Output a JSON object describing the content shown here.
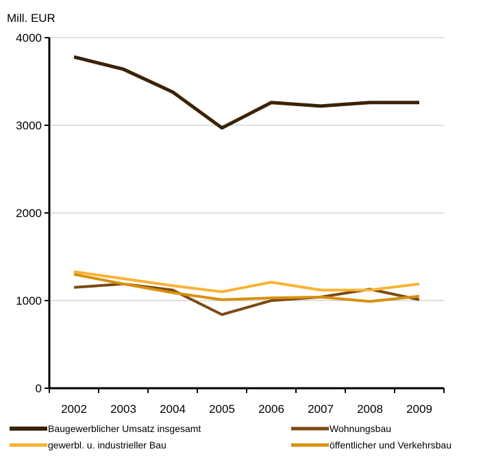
{
  "chart_data": {
    "type": "line",
    "unit_label": "Mill.  EUR",
    "categories": [
      "2002",
      "2003",
      "2004",
      "2005",
      "2006",
      "2007",
      "2008",
      "2009"
    ],
    "ylim": [
      0,
      4000
    ],
    "yticks": [
      "0",
      "1000",
      "2000",
      "3000",
      "4000"
    ],
    "grid": true,
    "legend_position": "bottom",
    "series": [
      {
        "name": "Baugewerblicher Umsatz insgesamt",
        "color": "#3a2208",
        "values": [
          3780,
          3640,
          3380,
          2970,
          3260,
          3220,
          3260,
          3260
        ]
      },
      {
        "name": "Wohnungsbau",
        "color": "#7b4a12",
        "values": [
          1150,
          1190,
          1120,
          840,
          1000,
          1040,
          1130,
          1010
        ]
      },
      {
        "name": "gewerbl. u. industrieller  Bau",
        "color": "#f9b233",
        "values": [
          1330,
          1250,
          1170,
          1100,
          1210,
          1120,
          1120,
          1190
        ]
      },
      {
        "name": "öffentlicher und Verkehrsbau",
        "color": "#d8900c",
        "values": [
          1300,
          1190,
          1090,
          1010,
          1030,
          1040,
          990,
          1050
        ]
      }
    ]
  }
}
